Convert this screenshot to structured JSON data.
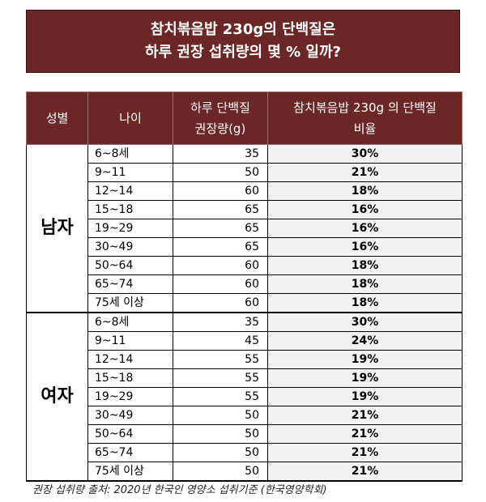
{
  "title": {
    "line1": "참치볶음밥 230g의 단백질은",
    "line2": "하루 권장 섭취량의 몇 % 일까?"
  },
  "table": {
    "headers": {
      "gender": "성별",
      "age": "나이",
      "recommended_line1": "하루 단백질",
      "recommended_line2": "권장량(g)",
      "ratio_line1": "참치볶음밥 230g 의 단백질",
      "ratio_line2": "비율"
    },
    "groups": [
      {
        "gender": "남자",
        "rows": [
          {
            "age": "6~8세",
            "recommended": "35",
            "ratio": "30%"
          },
          {
            "age": "9~11",
            "recommended": "50",
            "ratio": "21%"
          },
          {
            "age": "12~14",
            "recommended": "60",
            "ratio": "18%"
          },
          {
            "age": "15~18",
            "recommended": "65",
            "ratio": "16%"
          },
          {
            "age": "19~29",
            "recommended": "65",
            "ratio": "16%"
          },
          {
            "age": "30~49",
            "recommended": "65",
            "ratio": "16%"
          },
          {
            "age": "50~64",
            "recommended": "60",
            "ratio": "18%"
          },
          {
            "age": "65~74",
            "recommended": "60",
            "ratio": "18%"
          },
          {
            "age": "75세 이상",
            "recommended": "60",
            "ratio": "18%"
          }
        ]
      },
      {
        "gender": "여자",
        "rows": [
          {
            "age": "6~8세",
            "recommended": "35",
            "ratio": "30%"
          },
          {
            "age": "9~11",
            "recommended": "45",
            "ratio": "24%"
          },
          {
            "age": "12~14",
            "recommended": "55",
            "ratio": "19%"
          },
          {
            "age": "15~18",
            "recommended": "55",
            "ratio": "19%"
          },
          {
            "age": "19~29",
            "recommended": "55",
            "ratio": "19%"
          },
          {
            "age": "30~49",
            "recommended": "50",
            "ratio": "21%"
          },
          {
            "age": "50~64",
            "recommended": "50",
            "ratio": "21%"
          },
          {
            "age": "65~74",
            "recommended": "50",
            "ratio": "21%"
          },
          {
            "age": "75세 이상",
            "recommended": "50",
            "ratio": "21%"
          }
        ]
      }
    ]
  },
  "footnote": "권장 섭취량 출처: 2020년 한국인 영양소 섭취기준 (한국영양학회)",
  "colors": {
    "header_bg": "#6b2626",
    "ratio_bg": "#f2f2f2"
  }
}
